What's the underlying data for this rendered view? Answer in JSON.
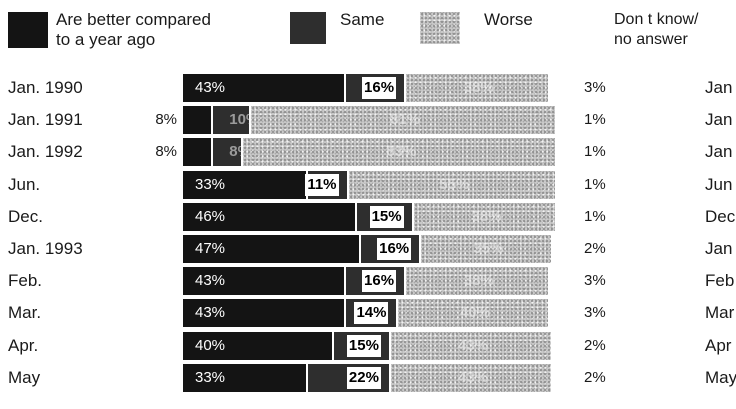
{
  "chart_data": {
    "type": "bar",
    "stacked": "horizontal-100",
    "legend": {
      "better": "Are better compared to a year ago",
      "better_line1": "Are better compared",
      "better_line2": "to a year ago",
      "same": "Same",
      "worse": "Worse",
      "dk": "Don t know/ no answer",
      "dk_line1": "Don t know/",
      "dk_line2": "no answer"
    },
    "categories": [
      "Jan. 1990",
      "Jan. 1991",
      "Jan. 1992",
      "Jun.",
      "Dec.",
      "Jan. 1993",
      "Feb.",
      "Mar.",
      "Apr.",
      "May"
    ],
    "right_labels": [
      "Jan",
      "Jan",
      "Jan",
      "Jun",
      "Dec",
      "Jan",
      "Feb",
      "Mar",
      "Apr",
      "May"
    ],
    "series": [
      {
        "name": "Are better compared to a year ago",
        "values": [
          43,
          8,
          8,
          33,
          46,
          47,
          43,
          43,
          40,
          33
        ],
        "labels": [
          "43%",
          "8%",
          "8%",
          "33%",
          "46%",
          "47%",
          "43%",
          "43%",
          "40%",
          "33%"
        ]
      },
      {
        "name": "Same",
        "values": [
          16,
          10,
          8,
          11,
          15,
          16,
          16,
          14,
          15,
          22
        ],
        "labels": [
          "16%",
          "10%",
          "8%",
          "11%",
          "15%",
          "16%",
          "16%",
          "14%",
          "15%",
          "22%"
        ]
      },
      {
        "name": "Worse",
        "values": [
          38,
          81,
          83,
          55,
          38,
          35,
          38,
          40,
          43,
          43
        ],
        "labels": [
          "38%",
          "81%",
          "83%",
          "55%",
          "38%",
          "35%",
          "38%",
          "40%",
          "43%",
          "43%"
        ]
      },
      {
        "name": "Don t know/ no answer",
        "values": [
          3,
          1,
          1,
          1,
          1,
          2,
          3,
          3,
          2,
          2
        ],
        "labels": [
          "3%",
          "1%",
          "1%",
          "1%",
          "1%",
          "2%",
          "3%",
          "3%",
          "2%",
          "2%"
        ]
      }
    ],
    "colors": {
      "better": "#141414",
      "same": "#2e2e2e",
      "worse": "#c9c9c9"
    },
    "legend_placement": "top",
    "grid": false
  }
}
